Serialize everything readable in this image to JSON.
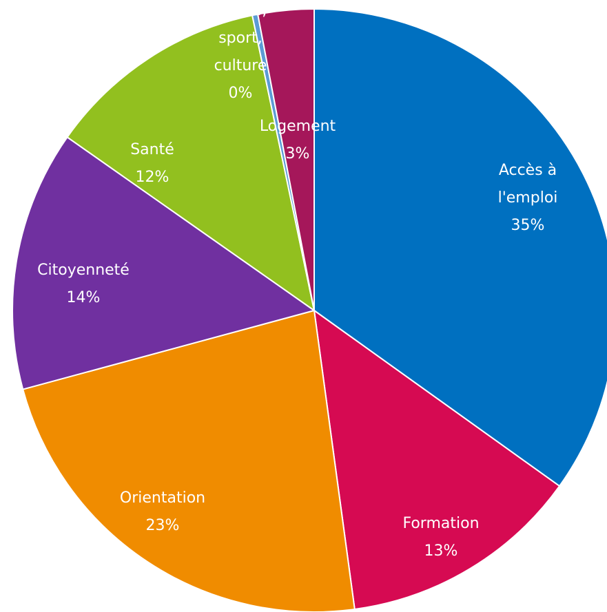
{
  "chart_data": {
    "type": "pie",
    "title": "",
    "slices": [
      {
        "label_lines": [
          "Accès à",
          "l'emploi"
        ],
        "percent_text": "35%",
        "value": 35,
        "color": "#0070c0"
      },
      {
        "label_lines": [
          "Formation"
        ],
        "percent_text": "13%",
        "value": 13,
        "color": "#d60a52"
      },
      {
        "label_lines": [
          "Orientation"
        ],
        "percent_text": "23%",
        "value": 23,
        "color": "#f08c00"
      },
      {
        "label_lines": [
          "Citoyenneté"
        ],
        "percent_text": "14%",
        "value": 14,
        "color": "#7030a0"
      },
      {
        "label_lines": [
          "Santé"
        ],
        "percent_text": "12%",
        "value": 12,
        "color": "#92c01f"
      },
      {
        "label_lines": [
          "Loisirs,",
          "sport,",
          "culture"
        ],
        "percent_text": "0%",
        "value": 0.3,
        "color": "#5b9bd5"
      },
      {
        "label_lines": [
          "Logement"
        ],
        "percent_text": "3%",
        "value": 3,
        "color": "#a5175a"
      }
    ]
  }
}
